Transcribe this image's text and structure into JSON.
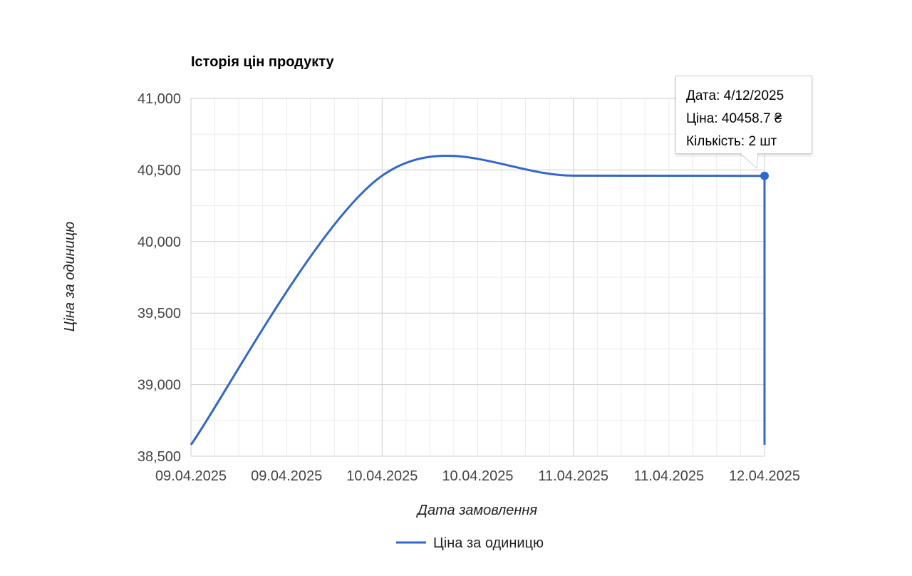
{
  "chart_data": {
    "type": "line",
    "title": "Історія цін продукту",
    "xlabel": "Дата замовлення",
    "ylabel": "Ціна за одиницю",
    "ylim": [
      38500,
      41000
    ],
    "yticks": [
      "41,000",
      "40,500",
      "40,000",
      "39,500",
      "39,000",
      "38,500"
    ],
    "ytick_values": [
      41000,
      40500,
      40000,
      39500,
      39000,
      38500
    ],
    "xlim": [
      "09.04.2025 00:00",
      "12.04.2025 00:00"
    ],
    "xticks": [
      "09.04.2025",
      "09.04.2025",
      "10.04.2025",
      "10.04.2025",
      "11.04.2025",
      "11.04.2025",
      "12.04.2025"
    ],
    "grid": true,
    "legend": "bottom",
    "series": [
      {
        "name": "Ціна за одиницю",
        "color": "#3366cc",
        "points": [
          {
            "x": "09.04.2025 00:00",
            "y": 38580
          },
          {
            "x": "10.04.2025 00:00",
            "y": 40460
          },
          {
            "x": "11.04.2025 00:00",
            "y": 40460
          },
          {
            "x": "12.04.2025 00:00",
            "y": 40458.7
          }
        ]
      }
    ],
    "tooltip": {
      "line1": "Дата: 4/12/2025",
      "line2": "Ціна: 40458.7 ₴",
      "line3": "Кількість: 2 шт"
    }
  }
}
